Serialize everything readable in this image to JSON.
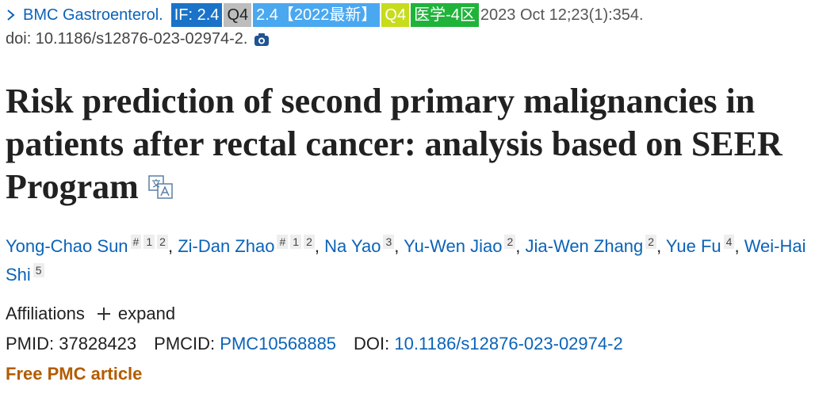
{
  "citation": {
    "journal": "BMC Gastroenterol.",
    "badges": [
      {
        "text": "IF: 2.4",
        "color": "#1a73c8",
        "text_color": "#ffffff"
      },
      {
        "text": "Q4",
        "color": "#bdbdbd",
        "text_color": "#222222"
      },
      {
        "text": "2.4【2022最新】",
        "color": "#4aa8f0",
        "text_color": "#ffffff"
      },
      {
        "text": "Q4",
        "color": "#c6dc1c",
        "text_color": "#ffffff"
      },
      {
        "text": "医学-4区",
        "color": "#1fb33a",
        "text_color": "#ffffff"
      }
    ],
    "date": "2023 Oct 12;23(1):354.",
    "doi": "doi: 10.1186/s12876-023-02974-2."
  },
  "title": "Risk prediction of second primary malignancies in patients after rectal cancer: analysis based on SEER Program",
  "authors": {
    "separator": ",",
    "list": [
      {
        "name": "Yong-Chao Sun",
        "marks": [
          "#",
          "1",
          "2"
        ]
      },
      {
        "name": "Zi-Dan Zhao",
        "marks": [
          "#",
          "1",
          "2"
        ]
      },
      {
        "name": "Na Yao",
        "marks": [
          "3"
        ]
      },
      {
        "name": "Yu-Wen Jiao",
        "marks": [
          "2"
        ]
      },
      {
        "name": "Jia-Wen Zhang",
        "marks": [
          "2"
        ]
      },
      {
        "name": "Yue Fu",
        "marks": [
          "4"
        ]
      },
      {
        "name": "Wei-Hai Shi",
        "marks": [
          "5"
        ]
      }
    ]
  },
  "affiliations": {
    "label": "Affiliations",
    "action": "expand"
  },
  "identifiers": [
    {
      "label": "PMID:",
      "value": "37828423",
      "link": false
    },
    {
      "label": "PMCID:",
      "value": "PMC10568885",
      "link": true
    },
    {
      "label": "DOI:",
      "value": "10.1186/s12876-023-02974-2",
      "link": true
    }
  ],
  "free_label": "Free PMC article"
}
